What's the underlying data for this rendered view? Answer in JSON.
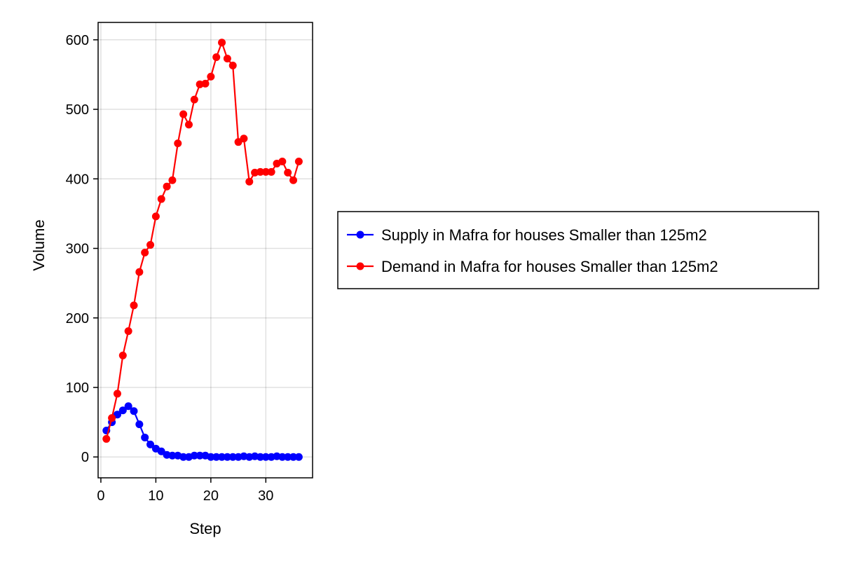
{
  "chart_data": {
    "type": "line",
    "title": "",
    "xlabel": "Step",
    "ylabel": "Volume",
    "xlim": [
      -0.5,
      38.5
    ],
    "ylim": [
      -30,
      625
    ],
    "xticks": [
      0,
      10,
      20,
      30
    ],
    "yticks": [
      0,
      100,
      200,
      300,
      400,
      500,
      600
    ],
    "grid": true,
    "legend_position": "right",
    "series": [
      {
        "name": "Supply in Mafra for houses Smaller than 125m2",
        "color": "#0000ff",
        "x": [
          1,
          2,
          3,
          4,
          5,
          6,
          7,
          8,
          9,
          10,
          11,
          12,
          13,
          14,
          15,
          16,
          17,
          18,
          19,
          20,
          21,
          22,
          23,
          24,
          25,
          26,
          27,
          28,
          29,
          30,
          31,
          32,
          33,
          34,
          35,
          36
        ],
        "values": [
          38,
          50,
          61,
          67,
          73,
          66,
          47,
          28,
          18,
          12,
          8,
          3,
          2,
          2,
          0,
          0,
          2,
          2,
          2,
          0,
          0,
          0,
          0,
          0,
          0,
          1,
          0,
          1,
          0,
          0,
          0,
          1,
          0,
          0,
          0,
          0
        ]
      },
      {
        "name": "Demand in Mafra for houses Smaller than 125m2",
        "color": "#ff0000",
        "x": [
          1,
          2,
          3,
          4,
          5,
          6,
          7,
          8,
          9,
          10,
          11,
          12,
          13,
          14,
          15,
          16,
          17,
          18,
          19,
          20,
          21,
          22,
          23,
          24,
          25,
          26,
          27,
          28,
          29,
          30,
          31,
          32,
          33,
          34,
          35,
          36
        ],
        "values": [
          26,
          56,
          91,
          146,
          181,
          218,
          266,
          294,
          305,
          346,
          371,
          389,
          398,
          451,
          493,
          478,
          514,
          536,
          537,
          547,
          575,
          596,
          573,
          563,
          453,
          458,
          396,
          409,
          410,
          410,
          410,
          422,
          425,
          409,
          398,
          425
        ]
      }
    ]
  }
}
